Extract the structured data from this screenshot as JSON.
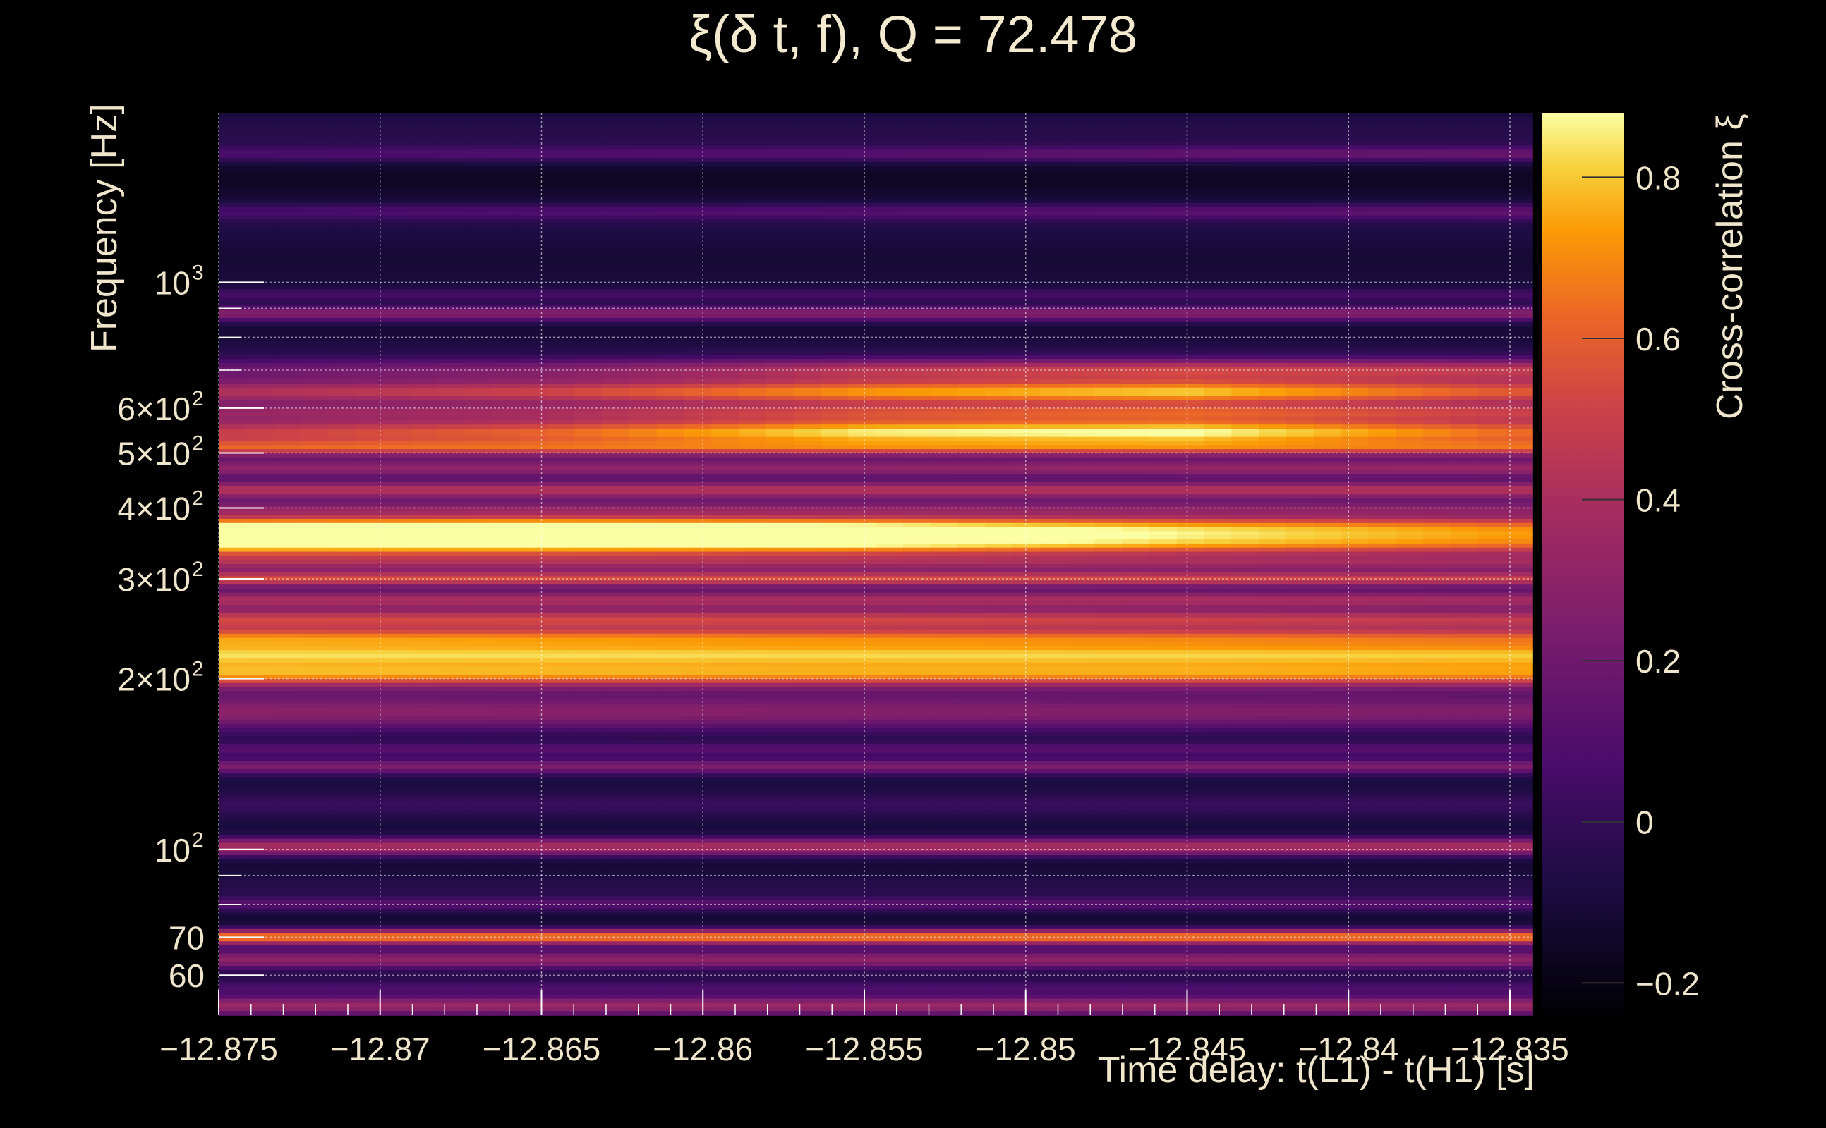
{
  "title": "ξ(δ t, f), Q = 72.478",
  "chart_data": {
    "type": "heatmap",
    "title": "ξ(δ t, f), Q = 72.478",
    "xlabel": "Time delay: t(L1) - t(H1) [s]",
    "ylabel": "Frequency [Hz]",
    "zlabel": "Cross-correlation ξ",
    "x_range": [
      -12.875,
      -12.8343
    ],
    "y_range": [
      51,
      1990
    ],
    "y_scale": "log",
    "z_range": [
      -0.24,
      0.88
    ],
    "grid": true,
    "colormap": "inferno",
    "x_ticks": [
      {
        "value": -12.875,
        "label": "−12.875"
      },
      {
        "value": -12.87,
        "label": "−12.87"
      },
      {
        "value": -12.865,
        "label": "−12.865"
      },
      {
        "value": -12.86,
        "label": "−12.86"
      },
      {
        "value": -12.855,
        "label": "−12.855"
      },
      {
        "value": -12.85,
        "label": "−12.85"
      },
      {
        "value": -12.845,
        "label": "−12.845"
      },
      {
        "value": -12.84,
        "label": "−12.84"
      },
      {
        "value": -12.835,
        "label": "−12.835"
      }
    ],
    "y_ticks": [
      {
        "value": 60,
        "label": "60"
      },
      {
        "value": 70,
        "label": "70"
      },
      {
        "value": 100,
        "label": "10",
        "sup": "2"
      },
      {
        "value": 200,
        "label": "2×10",
        "sup": "2"
      },
      {
        "value": 300,
        "label": "3×10",
        "sup": "2"
      },
      {
        "value": 400,
        "label": "4×10",
        "sup": "2"
      },
      {
        "value": 500,
        "label": "5×10",
        "sup": "2"
      },
      {
        "value": 600,
        "label": "6×10",
        "sup": "2"
      },
      {
        "value": 1000,
        "label": "10",
        "sup": "3"
      }
    ],
    "y_minor_ticks": [
      80,
      90,
      700,
      800,
      900
    ],
    "z_ticks": [
      {
        "value": -0.2,
        "label": "−0.2"
      },
      {
        "value": 0,
        "label": "0"
      },
      {
        "value": 0.2,
        "label": "0.2"
      },
      {
        "value": 0.4,
        "label": "0.4"
      },
      {
        "value": 0.6,
        "label": "0.6"
      },
      {
        "value": 0.8,
        "label": "0.8"
      }
    ],
    "bands": [
      {
        "freq": 53,
        "width": 0.012,
        "xi": [
          0.35,
          0.35,
          0.35,
          0.35,
          0.35
        ]
      },
      {
        "freq": 57,
        "width": 0.01,
        "xi": [
          0.05,
          0.05,
          0.05,
          0.05,
          0.05
        ]
      },
      {
        "freq": 64,
        "width": 0.012,
        "xi": [
          0.3,
          0.3,
          0.3,
          0.3,
          0.3
        ]
      },
      {
        "freq": 70,
        "width": 0.01,
        "xi": [
          0.72,
          0.72,
          0.72,
          0.72,
          0.72
        ]
      },
      {
        "freq": 80,
        "width": 0.008,
        "xi": [
          0.08,
          0.08,
          0.08,
          0.08,
          0.08
        ]
      },
      {
        "freq": 101,
        "width": 0.012,
        "xi": [
          0.45,
          0.45,
          0.45,
          0.45,
          0.45
        ]
      },
      {
        "freq": 120,
        "width": 0.015,
        "xi": [
          -0.02,
          -0.02,
          -0.02,
          -0.02,
          -0.02
        ]
      },
      {
        "freq": 140,
        "width": 0.01,
        "xi": [
          0.25,
          0.25,
          0.25,
          0.25,
          0.25
        ]
      },
      {
        "freq": 150,
        "width": 0.008,
        "xi": [
          0.1,
          0.1,
          0.1,
          0.1,
          0.1
        ]
      },
      {
        "freq": 175,
        "width": 0.025,
        "xi": [
          0.33,
          0.32,
          0.31,
          0.3,
          0.29
        ]
      },
      {
        "freq": 205,
        "width": 0.018,
        "xi": [
          0.7,
          0.69,
          0.68,
          0.68,
          0.66
        ]
      },
      {
        "freq": 220,
        "width": 0.012,
        "xi": [
          0.45,
          0.45,
          0.45,
          0.45,
          0.45
        ]
      },
      {
        "freq": 235,
        "width": 0.016,
        "xi": [
          0.74,
          0.72,
          0.7,
          0.68,
          0.64
        ]
      },
      {
        "freq": 255,
        "width": 0.012,
        "xi": [
          0.5,
          0.5,
          0.5,
          0.48,
          0.45
        ]
      },
      {
        "freq": 275,
        "width": 0.012,
        "xi": [
          0.38,
          0.38,
          0.38,
          0.38,
          0.36
        ]
      },
      {
        "freq": 300,
        "width": 0.01,
        "xi": [
          0.5,
          0.5,
          0.5,
          0.48,
          0.45
        ]
      },
      {
        "freq": 320,
        "width": 0.01,
        "xi": [
          0.28,
          0.28,
          0.28,
          0.28,
          0.28
        ]
      },
      {
        "freq": 345,
        "width": 0.016,
        "xi": [
          0.86,
          0.84,
          0.78,
          0.65,
          0.55
        ]
      },
      {
        "freq": 370,
        "width": 0.016,
        "xi": [
          0.8,
          0.86,
          0.8,
          0.68,
          0.58
        ]
      },
      {
        "freq": 400,
        "width": 0.01,
        "xi": [
          0.2,
          0.2,
          0.2,
          0.2,
          0.2
        ]
      },
      {
        "freq": 430,
        "width": 0.012,
        "xi": [
          0.45,
          0.45,
          0.45,
          0.45,
          0.45
        ]
      },
      {
        "freq": 470,
        "width": 0.012,
        "xi": [
          0.3,
          0.3,
          0.3,
          0.32,
          0.33
        ]
      },
      {
        "freq": 510,
        "width": 0.01,
        "xi": [
          0.45,
          0.45,
          0.45,
          0.45,
          0.45
        ]
      },
      {
        "freq": 545,
        "width": 0.016,
        "xi": [
          0.45,
          0.58,
          0.82,
          0.86,
          0.6
        ]
      },
      {
        "freq": 590,
        "width": 0.012,
        "xi": [
          0.28,
          0.32,
          0.45,
          0.5,
          0.42
        ]
      },
      {
        "freq": 640,
        "width": 0.016,
        "xi": [
          0.45,
          0.55,
          0.76,
          0.84,
          0.62
        ]
      },
      {
        "freq": 700,
        "width": 0.014,
        "xi": [
          0.12,
          0.2,
          0.38,
          0.45,
          0.4
        ]
      },
      {
        "freq": 880,
        "width": 0.01,
        "xi": [
          0.3,
          0.3,
          0.3,
          0.3,
          0.3
        ]
      },
      {
        "freq": 950,
        "width": 0.008,
        "xi": [
          0.06,
          0.06,
          0.06,
          0.06,
          0.06
        ]
      },
      {
        "freq": 1330,
        "width": 0.01,
        "xi": [
          0.04,
          0.06,
          0.08,
          0.1,
          0.12
        ]
      },
      {
        "freq": 1680,
        "width": 0.01,
        "xi": [
          0.06,
          0.08,
          0.1,
          0.14,
          0.16
        ]
      }
    ],
    "band_x_anchors": [
      -12.875,
      -12.865,
      -12.855,
      -12.845,
      -12.835
    ]
  }
}
